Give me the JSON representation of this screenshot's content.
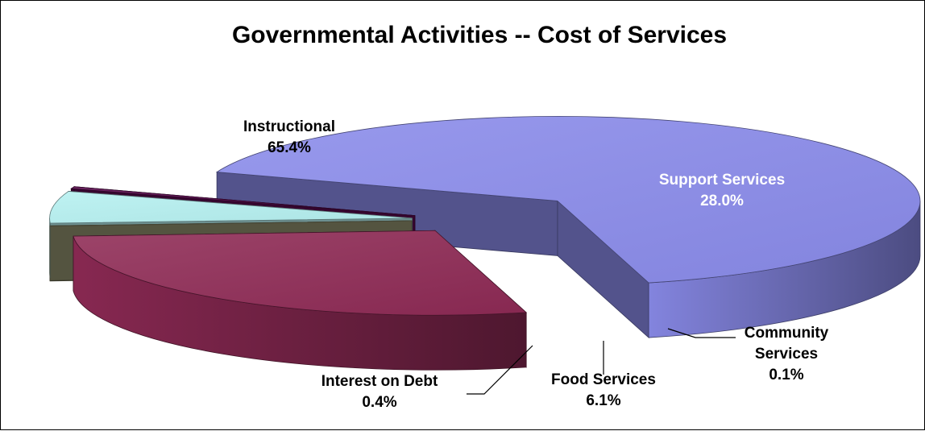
{
  "chart_data": {
    "type": "pie",
    "title": "Governmental Activities -- Cost of Services",
    "slices": [
      {
        "name": "Instructional",
        "label_lines": [
          "Instructional"
        ],
        "value": 65.4,
        "value_label": "65.4%",
        "color": "#8a8bea"
      },
      {
        "name": "Support Services",
        "label_lines": [
          "Support Services"
        ],
        "value": 28.0,
        "value_label": "28.0%",
        "color": "#8e2a55"
      },
      {
        "name": "Community Services",
        "label_lines": [
          "Community",
          "Services"
        ],
        "value": 0.1,
        "value_label": "0.1%",
        "color": "#8c8c6a"
      },
      {
        "name": "Food Services",
        "label_lines": [
          "Food Services"
        ],
        "value": 6.1,
        "value_label": "6.1%",
        "color": "#b5f0f0"
      },
      {
        "name": "Interest on Debt",
        "label_lines": [
          "Interest on Debt"
        ],
        "value": 0.4,
        "value_label": "0.4%",
        "color": "#5a0a4e"
      }
    ],
    "style": "3d-exploded"
  }
}
